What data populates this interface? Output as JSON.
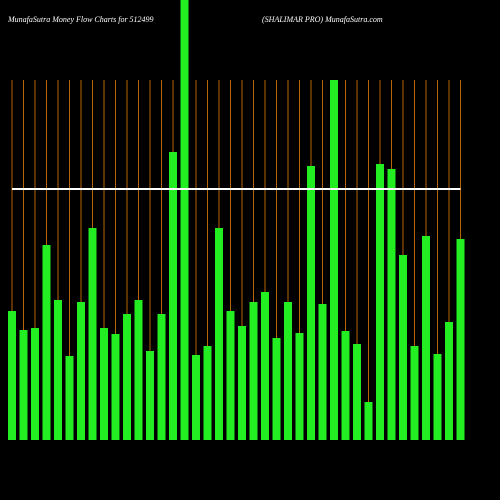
{
  "chart_data": {
    "type": "bar",
    "title": "MunafaSutra  Money Flow  Charts for 512499",
    "subtitle": "(SHALIMAR PRO) MunafaSutra.com",
    "ylim": [
      0,
      440
    ],
    "grid": true,
    "grid_color": "#b8650a",
    "background": "#000000",
    "series": [
      {
        "type": "bar",
        "color": "#22ee22",
        "values": [
          129,
          110,
          112,
          195,
          140,
          84,
          138,
          212,
          112,
          106,
          126,
          140,
          89,
          126,
          288,
          440,
          85,
          94,
          212,
          129,
          114,
          138,
          148,
          102,
          138,
          107,
          274,
          136,
          360,
          109,
          96,
          38,
          276,
          271,
          185,
          94,
          204,
          86,
          118,
          201
        ]
      },
      {
        "type": "line",
        "color": "#ffffff",
        "values": [
          251,
          251,
          251,
          251,
          251,
          251,
          251,
          251,
          251,
          251,
          251,
          251,
          251,
          251,
          251,
          251,
          251,
          251,
          251,
          251,
          251,
          251,
          251,
          251,
          251,
          251,
          251,
          251,
          251,
          251,
          251,
          251,
          251,
          251,
          251,
          251,
          251,
          251,
          251,
          251
        ]
      }
    ]
  }
}
